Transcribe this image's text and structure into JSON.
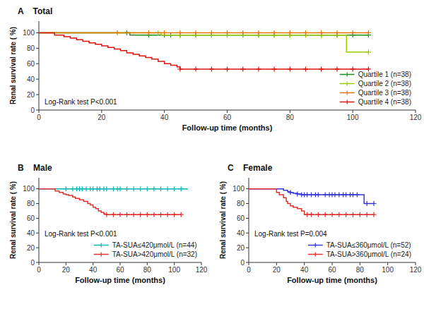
{
  "chart_data": [
    {
      "type": "step",
      "title": "A    Total",
      "xlabel": "Follow-up time (months)",
      "ylabel": "Renal survival rate ( %)",
      "annotation": "Log-Rank test P<0.001",
      "xlim": [
        0,
        120
      ],
      "ylim": [
        0,
        115
      ],
      "xticks": [
        0,
        20,
        40,
        60,
        80,
        100,
        120
      ],
      "yticks": [
        0,
        20,
        40,
        60,
        80,
        100
      ],
      "grid": false,
      "legend": "lower right",
      "series": [
        {
          "name": "Quartile 1 (n=38)",
          "color": "#228B22",
          "x": [
            0,
            28,
            29,
            35,
            40,
            50,
            60,
            70,
            80,
            90,
            100,
            105
          ],
          "values": [
            100,
            100,
            97,
            97,
            97,
            97,
            97,
            97,
            97,
            97,
            97,
            97
          ],
          "censor_x": [
            28,
            35,
            40,
            42,
            45,
            50,
            55,
            60,
            65,
            70,
            75,
            80,
            85,
            90,
            95,
            100,
            105
          ],
          "censor_values": [
            100,
            97,
            97,
            97,
            97,
            97,
            97,
            97,
            97,
            97,
            97,
            97,
            97,
            97,
            97,
            97,
            97
          ]
        },
        {
          "name": "Quartile 2 (n=38)",
          "color": "#9acd00",
          "x": [
            0,
            38,
            39,
            45,
            55,
            65,
            75,
            85,
            95,
            97,
            98,
            105
          ],
          "values": [
            100,
            100,
            97,
            97,
            97,
            97,
            97,
            97,
            97,
            97,
            75,
            75
          ],
          "censor_x": [
            38,
            45,
            50,
            55,
            60,
            65,
            70,
            75,
            80,
            85,
            90,
            95,
            105
          ],
          "censor_values": [
            100,
            97,
            97,
            97,
            97,
            97,
            97,
            97,
            97,
            97,
            97,
            97,
            75
          ]
        },
        {
          "name": "Quartile 3 (n=38)",
          "color": "#e07800",
          "x": [
            0,
            25,
            35,
            45,
            55,
            65,
            75,
            85,
            95,
            105
          ],
          "values": [
            100,
            100,
            100,
            100,
            100,
            100,
            100,
            100,
            100,
            100
          ],
          "censor_x": [
            25,
            35,
            40,
            45,
            50,
            55,
            60,
            65,
            70,
            75,
            80,
            85,
            90,
            95,
            100,
            105
          ],
          "censor_values": [
            100,
            100,
            100,
            100,
            100,
            100,
            100,
            100,
            100,
            100,
            100,
            100,
            100,
            100,
            100,
            100
          ]
        },
        {
          "name": "Quartile 4 (n=38)",
          "color": "#e01010",
          "x": [
            0,
            5,
            8,
            10,
            12,
            14,
            16,
            18,
            20,
            22,
            24,
            26,
            28,
            30,
            32,
            34,
            36,
            38,
            40,
            42,
            44,
            45,
            50,
            55,
            60,
            65,
            70,
            75,
            80,
            85,
            90,
            95,
            100,
            105
          ],
          "values": [
            100,
            97,
            95,
            93,
            91,
            89,
            87,
            85,
            83,
            81,
            79,
            77,
            74,
            72,
            70,
            68,
            66,
            63,
            60,
            58,
            56,
            53,
            53,
            53,
            53,
            53,
            53,
            53,
            53,
            53,
            53,
            53,
            53,
            53
          ],
          "censor_x": [
            45,
            50,
            55,
            60,
            65,
            70,
            75,
            80,
            85,
            90,
            95,
            100,
            105
          ],
          "censor_values": [
            53,
            53,
            53,
            53,
            53,
            53,
            53,
            53,
            53,
            53,
            53,
            53,
            53
          ]
        }
      ]
    },
    {
      "type": "step",
      "title": "B    Male",
      "xlabel": "Follow-up time (months)",
      "ylabel": "Renal survival rate ( %)",
      "annotation": "Log-Rank test P<0.001",
      "xlim": [
        0,
        120
      ],
      "ylim": [
        0,
        115
      ],
      "xticks": [
        0,
        20,
        40,
        60,
        80,
        100,
        120
      ],
      "yticks": [
        0,
        20,
        40,
        60,
        80,
        100
      ],
      "grid": false,
      "legend": "lower right",
      "series": [
        {
          "name": "TA-SUA≤420μmol/L (n=44)",
          "color": "#00b4b4",
          "x": [
            0,
            15,
            20,
            25,
            30,
            35,
            40,
            45,
            50,
            55,
            60,
            65,
            70,
            75,
            80,
            85,
            90,
            95,
            100,
            105,
            110
          ],
          "values": [
            100,
            100,
            100,
            100,
            100,
            100,
            100,
            100,
            100,
            100,
            100,
            100,
            100,
            100,
            100,
            100,
            100,
            100,
            100,
            100,
            100
          ],
          "censor_x": [
            20,
            25,
            28,
            30,
            32,
            35,
            38,
            40,
            43,
            45,
            48,
            50,
            55,
            58,
            60,
            65,
            70,
            75,
            80,
            85,
            90,
            95,
            100,
            105
          ],
          "censor_values": [
            100,
            100,
            100,
            100,
            100,
            100,
            100,
            100,
            100,
            100,
            100,
            100,
            100,
            100,
            100,
            100,
            100,
            100,
            100,
            100,
            100,
            100,
            100,
            100
          ]
        },
        {
          "name": "TA-SUA>420μmol/L (n=32)",
          "color": "#e03030",
          "x": [
            0,
            12,
            15,
            18,
            20,
            22,
            25,
            27,
            30,
            33,
            36,
            38,
            40,
            42,
            44,
            46,
            48,
            50,
            55,
            60,
            65,
            70,
            75,
            80,
            85,
            90,
            95,
            100,
            105
          ],
          "values": [
            100,
            97,
            95,
            93,
            92,
            91,
            89,
            87,
            85,
            83,
            80,
            78,
            75,
            73,
            70,
            68,
            66,
            65,
            65,
            65,
            65,
            65,
            65,
            65,
            65,
            65,
            65,
            65,
            65
          ],
          "censor_x": [
            50,
            55,
            60,
            65,
            70,
            75,
            80,
            85,
            90,
            95,
            100,
            105
          ],
          "censor_values": [
            65,
            65,
            65,
            65,
            65,
            65,
            65,
            65,
            65,
            65,
            65,
            65
          ]
        }
      ]
    },
    {
      "type": "step",
      "title": "C    Female",
      "xlabel": "Follow-up time (months)",
      "ylabel": "Renal survival rate ( %)",
      "annotation": "Log-Rank test P=0.004",
      "xlim": [
        0,
        120
      ],
      "ylim": [
        0,
        115
      ],
      "xticks": [
        0,
        20,
        40,
        60,
        80,
        100,
        120
      ],
      "yticks": [
        0,
        20,
        40,
        60,
        80,
        100
      ],
      "grid": false,
      "legend": "lower right",
      "series": [
        {
          "name": "TA-SUA≤360μmol/L (n=52)",
          "color": "#3535d5",
          "x": [
            0,
            22,
            25,
            28,
            30,
            32,
            35,
            38,
            40,
            45,
            50,
            55,
            60,
            65,
            70,
            75,
            80,
            82,
            83,
            90
          ],
          "values": [
            100,
            100,
            98,
            96,
            95,
            94,
            93,
            92,
            92,
            92,
            92,
            92,
            92,
            92,
            92,
            92,
            92,
            92,
            80,
            80
          ],
          "censor_x": [
            30,
            35,
            38,
            40,
            42,
            45,
            48,
            50,
            55,
            58,
            60,
            62,
            65,
            68,
            70,
            73,
            75,
            78,
            85,
            90
          ],
          "censor_values": [
            95,
            93,
            92,
            92,
            92,
            92,
            92,
            92,
            92,
            92,
            92,
            92,
            92,
            92,
            92,
            92,
            92,
            92,
            80,
            80
          ]
        },
        {
          "name": "TA-SUA>360μmol/L (n=24)",
          "color": "#e03030",
          "x": [
            0,
            20,
            22,
            25,
            27,
            28,
            30,
            32,
            35,
            38,
            40,
            42,
            44,
            45,
            50,
            55,
            60,
            65,
            70,
            75,
            80,
            85,
            90
          ],
          "values": [
            100,
            95,
            92,
            88,
            83,
            80,
            77,
            75,
            73,
            70,
            65,
            65,
            65,
            65,
            65,
            65,
            65,
            65,
            65,
            65,
            65,
            65,
            65
          ],
          "censor_x": [
            42,
            45,
            50,
            55,
            60,
            65,
            70,
            75,
            80,
            85,
            90
          ],
          "censor_values": [
            65,
            65,
            65,
            65,
            65,
            65,
            65,
            65,
            65,
            65,
            65
          ]
        }
      ]
    }
  ]
}
